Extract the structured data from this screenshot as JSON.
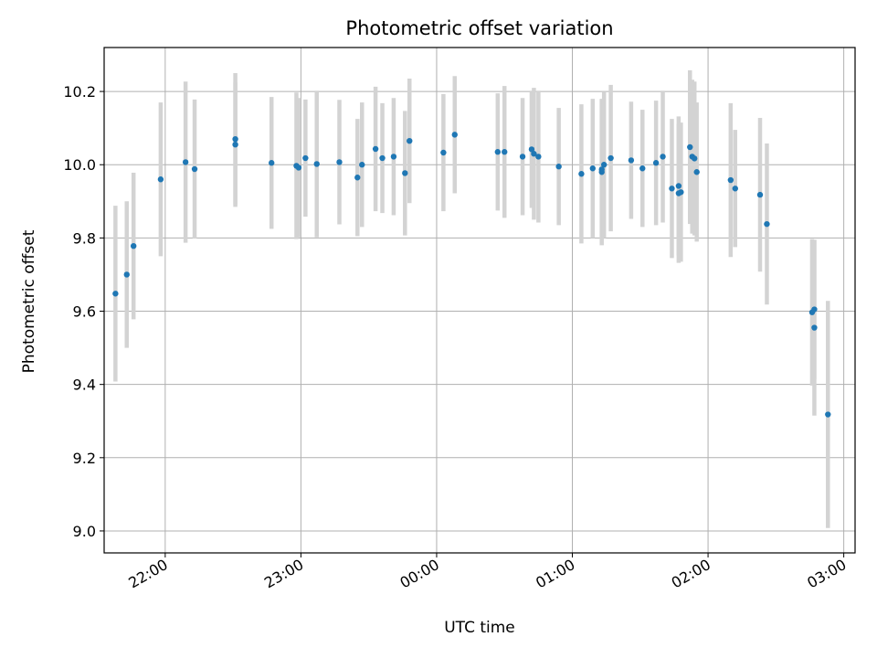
{
  "chart_data": {
    "type": "scatter",
    "title": "Photometric offset variation",
    "xlabel": "UTC time",
    "ylabel": "Photometric offset",
    "xlim": [
      "21:33",
      "23:04 (+1 day) 03:04"
    ],
    "x_range_minutes": [
      -27,
      305
    ],
    "ylim": [
      8.94,
      10.32
    ],
    "grid": true,
    "x_ticks": [
      "22:00",
      "23:00",
      "00:00",
      "01:00",
      "02:00",
      "03:00"
    ],
    "y_ticks": [
      "9.0",
      "9.2",
      "9.4",
      "9.6",
      "9.8",
      "10.0",
      "10.2"
    ],
    "colors": {
      "point": "#1f77b4",
      "errorbar": "#d3d3d3",
      "grid": "#b0b0b0"
    },
    "series": [
      {
        "time": [
          "21:38",
          "21:43",
          "21:46",
          "21:58",
          "22:09",
          "22:13",
          "22:31",
          "22:31",
          "22:47",
          "22:58",
          "22:59",
          "23:02",
          "23:07",
          "23:17",
          "23:25",
          "23:27",
          "23:33",
          "23:36",
          "23:41",
          "23:46",
          "23:48",
          "24:03",
          "24:08",
          "24:27",
          "24:30",
          "24:38",
          "24:42",
          "24:43",
          "24:45",
          "24:54",
          "25:04",
          "25:09",
          "25:13",
          "25:13",
          "25:14",
          "25:17",
          "25:26",
          "25:31",
          "25:37",
          "25:40",
          "25:44",
          "25:47",
          "25:47",
          "25:48",
          "25:52",
          "25:53",
          "25:54",
          "25:55",
          "26:10",
          "26:12",
          "26:23",
          "26:26",
          "26:46",
          "26:47",
          "26:47",
          "26:53"
        ],
        "y": [
          9.648,
          9.7,
          9.778,
          9.96,
          10.007,
          9.988,
          10.055,
          10.07,
          10.005,
          9.997,
          9.992,
          10.018,
          10.002,
          10.007,
          9.965,
          10.0,
          10.043,
          10.018,
          10.022,
          9.977,
          10.065,
          10.033,
          10.082,
          10.035,
          10.035,
          10.022,
          10.042,
          10.03,
          10.022,
          9.995,
          9.975,
          9.99,
          9.987,
          9.98,
          10.0,
          10.018,
          10.012,
          9.99,
          10.005,
          10.022,
          9.935,
          9.942,
          9.922,
          9.925,
          10.048,
          10.022,
          10.017,
          9.98,
          9.958,
          9.935,
          9.918,
          9.838,
          9.597,
          9.605,
          9.555,
          9.318
        ],
        "err": [
          0.24,
          0.2,
          0.2,
          0.21,
          0.22,
          0.19,
          0.17,
          0.18,
          0.18,
          0.2,
          0.19,
          0.16,
          0.2,
          0.17,
          0.16,
          0.17,
          0.17,
          0.15,
          0.16,
          0.17,
          0.17,
          0.16,
          0.16,
          0.16,
          0.18,
          0.16,
          0.16,
          0.18,
          0.18,
          0.16,
          0.19,
          0.19,
          0.19,
          0.2,
          0.2,
          0.2,
          0.16,
          0.16,
          0.17,
          0.18,
          0.19,
          0.19,
          0.19,
          0.19,
          0.21,
          0.21,
          0.21,
          0.19,
          0.21,
          0.16,
          0.21,
          0.22,
          0.2,
          0.19,
          0.24,
          0.31
        ]
      }
    ]
  }
}
